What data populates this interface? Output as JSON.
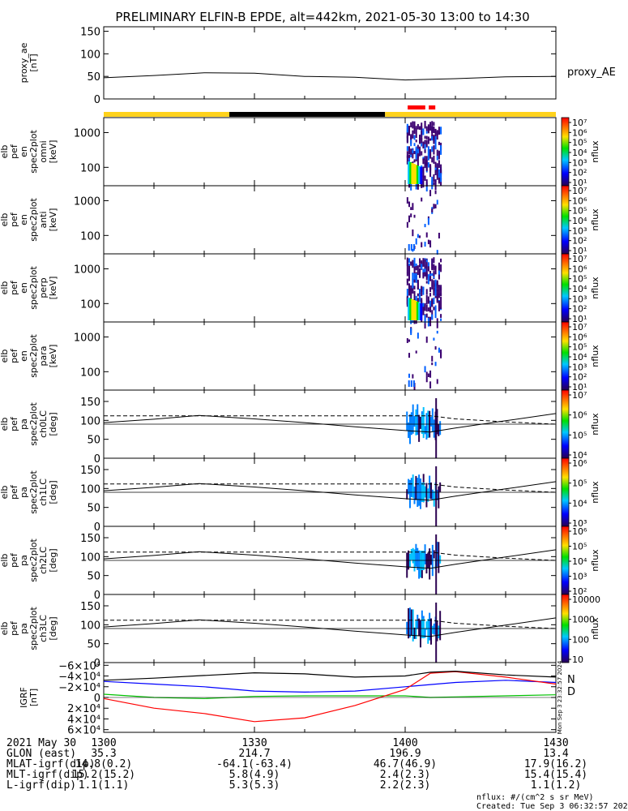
{
  "title": "PRELIMINARY ELFIN-B EPDE, alt=442km, 2021-05-30 13:00 to 14:30",
  "time_ticks": [
    "1300",
    "1330",
    "1400",
    "1430"
  ],
  "colors": {
    "bar_yellow": "#ffd21c",
    "bar_black": "#000000",
    "bar_red": "#ff0000",
    "north_label": "#0000ff",
    "down_label": "#ff6a00",
    "grf_north": "#0000ff",
    "grf_east": "#00c000",
    "grf_down": "#ff0000",
    "grf_total": "#000000"
  },
  "panels": [
    {
      "ylabel": [
        "proxy_ae",
        "[nT]"
      ],
      "yticks": [
        "150",
        "100",
        "50",
        "0"
      ],
      "right_label": "proxy_AE",
      "colorbar": null
    },
    {
      "ylabel": [
        "elb",
        "pef",
        "en",
        "spec2plot",
        "omni",
        "[keV]"
      ],
      "yticks": [
        "1000",
        "100"
      ],
      "colorbar": {
        "unit": "nflux",
        "labels": [
          "10⁷",
          "10⁶",
          "10⁵",
          "10⁴",
          "10³",
          "10²",
          "10¹"
        ]
      }
    },
    {
      "ylabel": [
        "elb",
        "pef",
        "en",
        "spec2plot",
        "anti",
        "[keV]"
      ],
      "yticks": [
        "1000",
        "100"
      ],
      "colorbar": {
        "unit": "nflux",
        "labels": [
          "10⁷",
          "10⁶",
          "10⁵",
          "10⁴",
          "10³",
          "10²",
          "10¹"
        ]
      }
    },
    {
      "ylabel": [
        "elb",
        "pef",
        "en",
        "spec2plot",
        "perp",
        "[keV]"
      ],
      "yticks": [
        "1000",
        "100"
      ],
      "colorbar": {
        "unit": "nflux",
        "labels": [
          "10⁷",
          "10⁶",
          "10⁵",
          "10⁴",
          "10³",
          "10²",
          "10¹"
        ]
      }
    },
    {
      "ylabel": [
        "elb",
        "pef",
        "en",
        "spec2plot",
        "para",
        "[keV]"
      ],
      "yticks": [
        "1000",
        "100"
      ],
      "colorbar": {
        "unit": "nflux",
        "labels": [
          "10⁷",
          "10⁶",
          "10⁵",
          "10⁴",
          "10³",
          "10²",
          "10¹"
        ]
      }
    },
    {
      "ylabel": [
        "elb",
        "pef",
        "pa",
        "spec2plot",
        "ch0LC",
        "[deg]"
      ],
      "yticks": [
        "150",
        "100",
        "50",
        "0"
      ],
      "colorbar": {
        "unit": "nflux",
        "labels": [
          "10⁷",
          "10⁶",
          "10⁵",
          "10⁴"
        ]
      }
    },
    {
      "ylabel": [
        "elb",
        "pef",
        "pa",
        "spec2plot",
        "ch1LC",
        "[deg]"
      ],
      "yticks": [
        "150",
        "100",
        "50",
        "0"
      ],
      "colorbar": {
        "unit": "nflux",
        "labels": [
          "10⁶",
          "10⁵",
          "10⁴",
          "10³"
        ]
      }
    },
    {
      "ylabel": [
        "elb",
        "pef",
        "pa",
        "spec2plot",
        "ch2LC",
        "[deg]"
      ],
      "yticks": [
        "150",
        "100",
        "50",
        "0"
      ],
      "colorbar": {
        "unit": "nflux",
        "labels": [
          "10⁶",
          "10⁵",
          "10⁴",
          "10³",
          "10²"
        ]
      }
    },
    {
      "ylabel": [
        "elb",
        "pef",
        "pa",
        "spec2plot",
        "ch3LC",
        "[deg]"
      ],
      "yticks": [
        "150",
        "100",
        "50",
        "0"
      ],
      "colorbar": {
        "unit": "nflux",
        "labels": [
          "10000",
          "1000",
          "100",
          "10"
        ]
      }
    },
    {
      "ylabel": [
        "IGRF",
        "[nT]"
      ],
      "yticks": [
        "6×10⁴",
        "4×10⁴",
        "2×10⁴",
        "0",
        "−2×10⁴",
        "−4×10⁴",
        "−6×10⁴"
      ],
      "right_labels": [
        "N",
        "D"
      ],
      "colorbar": null
    }
  ],
  "footer": {
    "rows": [
      [
        "2021 May 30",
        "1300",
        "1330",
        "1400",
        "1430"
      ],
      [
        "GLON (east)",
        "35.3",
        "214.7",
        "196.9",
        "13.4"
      ],
      [
        "MLAT-igrf(dip)",
        "14.8(0.2)",
        "-64.1(-63.4)",
        "46.7(46.9)",
        "17.9(16.2)"
      ],
      [
        "MLT-igrf(dip)",
        "15.2(15.2)",
        "5.8(4.9)",
        "2.4(2.3)",
        "15.4(15.4)"
      ],
      [
        "L-igrf(dip)",
        "1.1(1.1)",
        "5.3(5.3)",
        "2.2(2.3)",
        "1.1(1.2)"
      ]
    ],
    "unit_note": "nflux: #/(cm^2 s sr MeV)",
    "created": "Created: Tue Sep  3 06:32:57 2024",
    "side_stamp": "Mon Sep  3 23:32:57 2024"
  },
  "chart_data": {
    "type": "line",
    "xlabel": "",
    "x_range": [
      "13:00",
      "14:30"
    ],
    "proxy_ae": {
      "ylim": [
        0,
        160
      ],
      "x": [
        "13:00",
        "13:10",
        "13:20",
        "13:30",
        "13:40",
        "13:50",
        "14:00",
        "14:10",
        "14:20",
        "14:30"
      ],
      "values": [
        47,
        52,
        58,
        57,
        50,
        48,
        42,
        45,
        49,
        50
      ]
    },
    "bar_segments": [
      {
        "from": "13:00",
        "to": "13:25",
        "color": "yellow"
      },
      {
        "from": "13:25",
        "to": "13:56",
        "color": "black"
      },
      {
        "from": "13:56",
        "to": "14:30",
        "color": "yellow"
      },
      {
        "from": "14:00.5",
        "to": "14:04",
        "color": "red"
      },
      {
        "from": "14:04.7",
        "to": "14:06",
        "color": "red"
      }
    ],
    "loss_cone": {
      "ylim": [
        0,
        180
      ],
      "x": [
        "13:00",
        "13:10",
        "13:19",
        "13:30",
        "13:40",
        "13:50",
        "14:00",
        "14:05",
        "14:10",
        "14:20",
        "14:30"
      ],
      "solid": [
        94,
        103,
        113,
        104,
        94,
        83,
        73,
        69,
        80,
        99,
        118
      ],
      "dashed": [
        112,
        112,
        112,
        112,
        112,
        112,
        112,
        112,
        104,
        96,
        90
      ]
    },
    "igrf": {
      "ylim": [
        -65000,
        65000
      ],
      "x": [
        "13:00",
        "13:10",
        "13:20",
        "13:30",
        "13:40",
        "13:50",
        "14:00",
        "14:05",
        "14:10",
        "14:20",
        "14:30"
      ],
      "series": [
        {
          "name": "N",
          "values": [
            30000,
            25000,
            20000,
            12000,
            10000,
            12000,
            20000,
            24000,
            28000,
            32000,
            28000
          ]
        },
        {
          "name": "E",
          "values": [
            6000,
            0,
            -2000,
            2000,
            3000,
            3000,
            3000,
            0,
            1000,
            3000,
            5000
          ]
        },
        {
          "name": "D",
          "values": [
            -2000,
            -20000,
            -30000,
            -45000,
            -38000,
            -15000,
            15000,
            45000,
            48000,
            38000,
            25000
          ]
        },
        {
          "name": "",
          "values": [
            32000,
            36000,
            41000,
            46000,
            44000,
            38000,
            40000,
            47000,
            49000,
            42000,
            38000
          ]
        }
      ]
    },
    "spectrogram_activity": {
      "time_range": [
        "14:00",
        "14:07"
      ],
      "energy_range_keV": [
        60,
        5000
      ]
    }
  }
}
